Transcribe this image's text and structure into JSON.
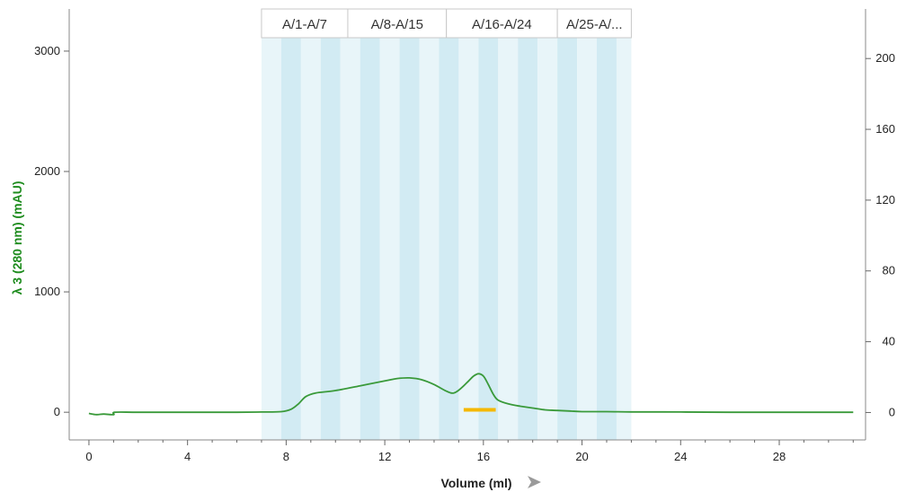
{
  "chart_data": {
    "type": "line",
    "xlabel": "Volume (ml)",
    "ylabel": "λ 3 (280 nm) (mAU)",
    "xlim": [
      -0.8,
      31.5
    ],
    "ylim": [
      -230,
      3350
    ],
    "y2lim": [
      -15.5,
      228
    ],
    "x_ticks": [
      0,
      4,
      8,
      12,
      16,
      20,
      24,
      28
    ],
    "y_ticks": [
      0,
      1000,
      2000,
      3000
    ],
    "y2_ticks": [
      0,
      40,
      80,
      120,
      160,
      200
    ],
    "grid": false,
    "fraction_region": [
      7,
      22
    ],
    "fraction_width": 0.8,
    "fraction_groups": [
      {
        "label": "A/1-A/7",
        "start": 7.0,
        "end": 10.5
      },
      {
        "label": "A/8-A/15",
        "start": 10.5,
        "end": 14.5
      },
      {
        "label": "A/16-A/24",
        "start": 14.5,
        "end": 19.0
      },
      {
        "label": "A/25-A/...",
        "start": 19.0,
        "end": 22.0
      }
    ],
    "marker": {
      "start": 15.2,
      "end": 16.5,
      "y": 20
    },
    "series": [
      {
        "color": "#3a9a3a",
        "x": [
          0,
          0.3,
          0.6,
          1.0,
          1.05,
          2,
          4,
          6,
          7,
          7.8,
          8.2,
          8.5,
          8.8,
          9.2,
          10,
          11,
          12,
          12.5,
          13,
          13.5,
          14,
          14.5,
          14.8,
          15.1,
          15.4,
          15.6,
          15.8,
          16,
          16.2,
          16.4,
          16.6,
          17,
          17.5,
          18,
          18.5,
          19,
          19.5,
          20,
          21,
          22,
          24,
          26,
          28,
          30,
          31
        ],
        "y": [
          -10,
          -20,
          -15,
          -20,
          0,
          0,
          0,
          0,
          2,
          5,
          25,
          70,
          130,
          160,
          180,
          220,
          260,
          280,
          285,
          270,
          230,
          175,
          160,
          200,
          260,
          300,
          320,
          300,
          230,
          150,
          100,
          70,
          50,
          35,
          20,
          15,
          10,
          5,
          5,
          3,
          2,
          0,
          0,
          0,
          0
        ]
      }
    ],
    "colors": {
      "line": "#3a9a3a",
      "ylabel": "#1e8c1e",
      "stripe_light": "#e8f5f9",
      "stripe_dark": "#d2ebf3",
      "marker": "#f5b800",
      "arrow": "#9a9a9a"
    }
  }
}
